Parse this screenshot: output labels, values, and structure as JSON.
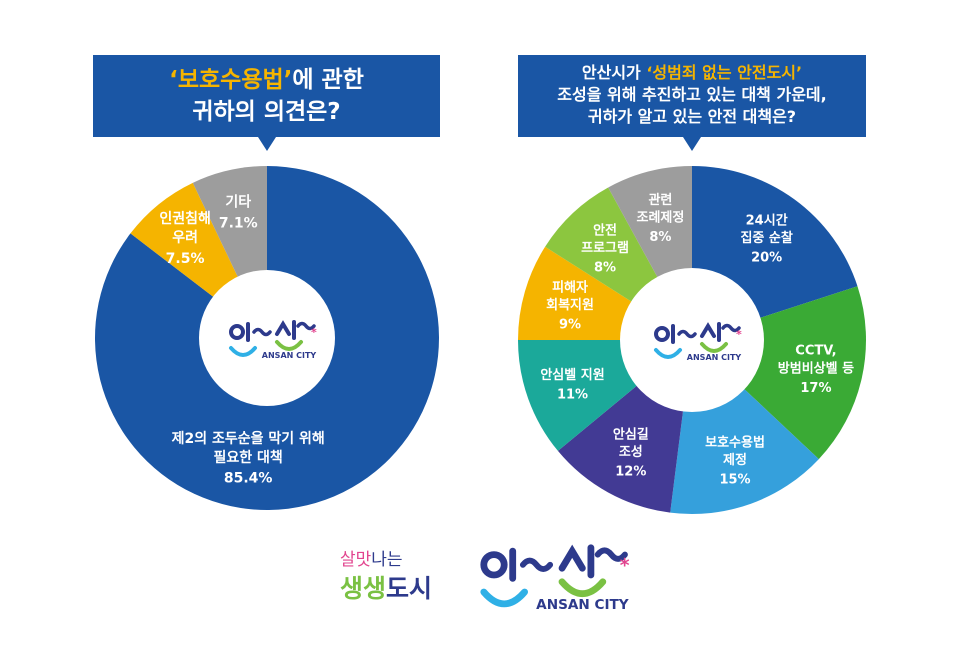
{
  "chart_data": [
    {
      "type": "pie",
      "donut": true,
      "title_highlight": "‘보호수용법’",
      "title_rest": "에 관한",
      "title_line2": "귀하의 의견은?",
      "slices": [
        {
          "label": [
            "제2의 조두순을 막기 위해",
            "필요한 대책"
          ],
          "value": 85.4,
          "value_label": "85.4%",
          "color": "#1a56a5"
        },
        {
          "label": [
            "인권침해",
            "우려"
          ],
          "value": 7.5,
          "value_label": "7.5%",
          "color": "#f5b400"
        },
        {
          "label": [
            "기타"
          ],
          "value": 7.1,
          "value_label": "7.1%",
          "color": "#9d9d9d"
        }
      ],
      "center_logo": {
        "text": "안산",
        "subtext": "ANSAN CITY"
      }
    },
    {
      "type": "pie",
      "donut": true,
      "title_line1_pre": "안산시가 ",
      "title_highlight": "‘성범죄 없는 안전도시’",
      "title_line2": "조성을 위해 추진하고 있는 대책 가운데,",
      "title_line3": "귀하가 알고 있는 안전 대책은?",
      "slices": [
        {
          "label": [
            "24시간",
            "집중 순찰"
          ],
          "value": 20,
          "value_label": "20%",
          "color": "#1a56a5"
        },
        {
          "label": [
            "CCTV,",
            "방범비상벨 등"
          ],
          "value": 17,
          "value_label": "17%",
          "color": "#3aaa35"
        },
        {
          "label": [
            "보호수용법",
            "제정"
          ],
          "value": 15,
          "value_label": "15%",
          "color": "#35a0dc"
        },
        {
          "label": [
            "안심길",
            "조성"
          ],
          "value": 12,
          "value_label": "12%",
          "color": "#423a94"
        },
        {
          "label": [
            "안심벨 지원"
          ],
          "value": 11,
          "value_label": "11%",
          "color": "#1ba99a"
        },
        {
          "label": [
            "피해자",
            "회복지원"
          ],
          "value": 9,
          "value_label": "9%",
          "color": "#f5b400"
        },
        {
          "label": [
            "안전",
            "프로그램"
          ],
          "value": 8,
          "value_label": "8%",
          "color": "#8cc63f"
        },
        {
          "label": [
            "관련",
            "조례제정"
          ],
          "value": 8,
          "value_label": "8%",
          "color": "#9d9d9d"
        }
      ],
      "center_logo": {
        "text": "안산",
        "subtext": "ANSAN CITY"
      }
    }
  ],
  "footer": {
    "slogan_pink": "살맛",
    "slogan_navy": "나는",
    "slogan2_green": "생생",
    "slogan2_navy": "도시",
    "logo_text": "안산",
    "logo_sub": "ANSAN CITY"
  }
}
